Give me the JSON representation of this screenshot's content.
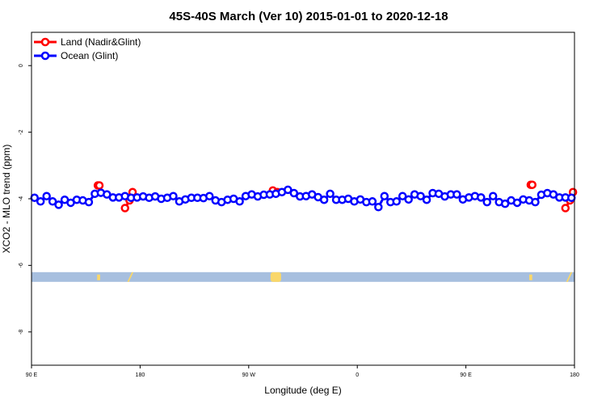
{
  "chart_data": {
    "type": "line",
    "title": "45S-40S March (Ver 10)   2015-01-01 to 2020-12-18",
    "xlabel": "Longitude (deg E)",
    "ylabel": "XCO2 - MLO trend (ppm)",
    "xlim": [
      90,
      450
    ],
    "ylim": [
      -9,
      1
    ],
    "x_ticks": [
      {
        "value": 90,
        "label": "90 E"
      },
      {
        "value": 162,
        "label": "180"
      },
      {
        "value": 234,
        "label": "90 W"
      },
      {
        "value": 306,
        "label": "0"
      },
      {
        "value": 378,
        "label": "90 E"
      },
      {
        "value": 450,
        "label": "180"
      }
    ],
    "y_ticks": [
      {
        "value": 0,
        "label": "0"
      },
      {
        "value": -2,
        "label": "-2"
      },
      {
        "value": -4,
        "label": "-4"
      },
      {
        "value": -6,
        "label": "-6"
      },
      {
        "value": -8,
        "label": "-8"
      }
    ],
    "legend": {
      "position": "top-left",
      "entries": [
        {
          "label": "Land (Nadir&Glint)",
          "color": "#ff0000"
        },
        {
          "label": "Ocean (Glint)",
          "color": "#0000ff"
        }
      ]
    },
    "series": [
      {
        "name": "Ocean (Glint)",
        "color": "#0000ff",
        "x": [
          92,
          96,
          100,
          104,
          108,
          112,
          116,
          120,
          124,
          128,
          132,
          136,
          140,
          144,
          148,
          152,
          156,
          160,
          164,
          168,
          172,
          176,
          180,
          184,
          188,
          192,
          196,
          200,
          204,
          208,
          212,
          216,
          220,
          224,
          228,
          232,
          236,
          240,
          244,
          248,
          252,
          256,
          260,
          264,
          268,
          272,
          276,
          280,
          284,
          288,
          292,
          296,
          300,
          304,
          308,
          312,
          316,
          320,
          324,
          328,
          332,
          336,
          340,
          344,
          348,
          352,
          356,
          360,
          364,
          368,
          372,
          376,
          380,
          384,
          388,
          392,
          396,
          400,
          404,
          408,
          412,
          416,
          420,
          424,
          428,
          432,
          436,
          440,
          444,
          448
        ],
        "y": [
          -3.97,
          -4.08,
          -3.92,
          -4.08,
          -4.18,
          -4.03,
          -4.12,
          -4.03,
          -4.05,
          -4.1,
          -3.85,
          -3.82,
          -3.87,
          -3.96,
          -3.96,
          -3.92,
          -3.97,
          -3.96,
          -3.93,
          -3.97,
          -3.93,
          -4,
          -3.97,
          -3.92,
          -4.08,
          -4.02,
          -3.97,
          -3.97,
          -3.98,
          -3.92,
          -4.05,
          -4.1,
          -4.03,
          -4,
          -4.08,
          -3.92,
          -3.87,
          -3.93,
          -3.88,
          -3.87,
          -3.85,
          -3.8,
          -3.73,
          -3.83,
          -3.93,
          -3.92,
          -3.87,
          -3.95,
          -4.03,
          -3.85,
          -4.03,
          -4.03,
          -4,
          -4.08,
          -4.02,
          -4.1,
          -4.08,
          -4.25,
          -3.92,
          -4.1,
          -4.08,
          -3.92,
          -4.02,
          -3.87,
          -3.92,
          -4.03,
          -3.83,
          -3.85,
          -3.93,
          -3.87,
          -3.87,
          -4.02,
          -3.96,
          -3.92,
          -3.96,
          -4.1,
          -3.92,
          -4.1,
          -4.15,
          -4.05,
          -4.12,
          -4.02,
          -4.05,
          -4.1,
          -3.88,
          -3.83,
          -3.87,
          -3.96,
          -3.96,
          -3.97
        ]
      },
      {
        "name": "Land (Nadir&Glint)",
        "color": "#ff0000",
        "segments": [
          {
            "x": [
              134,
              135
            ],
            "y": [
              -3.6,
              -3.6
            ]
          },
          {
            "x": [
              152,
              155,
              157
            ],
            "y": [
              -4.28,
              -4.05,
              -3.8
            ]
          },
          {
            "x": [
              250,
              253
            ],
            "y": [
              -3.75,
              -3.8
            ]
          },
          {
            "x": [
              421,
              422
            ],
            "y": [
              -3.58,
              -3.58
            ]
          },
          {
            "x": [
              444,
              447,
              449
            ],
            "y": [
              -4.28,
              -4.05,
              -3.8
            ]
          }
        ]
      }
    ],
    "annotations": {
      "band_y": -6.35,
      "band_color": "#a7bfdf",
      "land_color": "#f9d76b",
      "land_marks": [
        {
          "x": 134.5,
          "width": 2,
          "shape": "tick"
        },
        {
          "x": 155,
          "width": 3,
          "shape": "slant"
        },
        {
          "x": 252,
          "width": 7,
          "shape": "blob"
        },
        {
          "x": 421,
          "width": 2,
          "shape": "tick"
        },
        {
          "x": 446,
          "width": 3,
          "shape": "slant"
        }
      ]
    }
  }
}
